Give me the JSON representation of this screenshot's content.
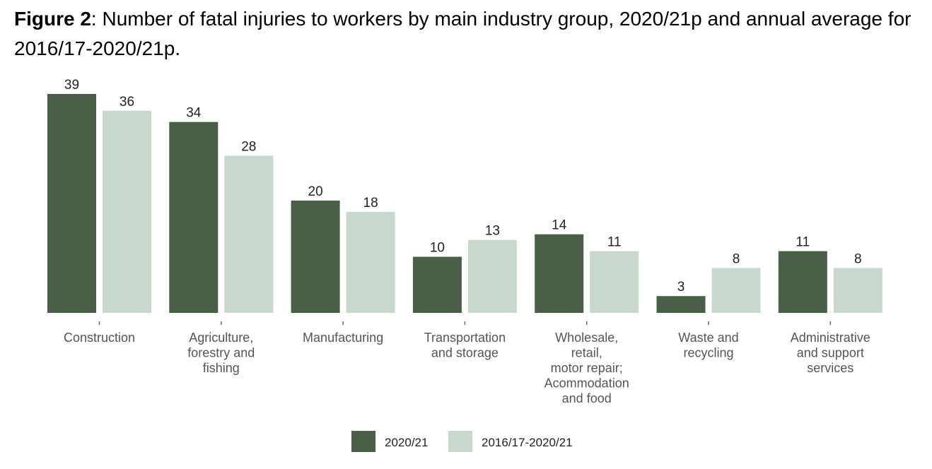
{
  "figure": {
    "label": "Figure 2",
    "caption": ": Number of fatal injuries to workers by main industry group, 2020/21p and annual average for 2016/17-2020/21p."
  },
  "colors": {
    "series1": "#4a5e48",
    "series2": "#c9d8cd",
    "tick": "#666666"
  },
  "chart_data": {
    "type": "bar",
    "categories": [
      [
        "Construction"
      ],
      [
        "Agriculture,",
        "forestry and",
        "fishing"
      ],
      [
        "Manufacturing"
      ],
      [
        "Transportation",
        "and storage"
      ],
      [
        "Wholesale,",
        "retail,",
        "motor repair;",
        "Acommodation",
        "and food"
      ],
      [
        "Waste and",
        "recycling"
      ],
      [
        "Administrative",
        "and support",
        "services"
      ]
    ],
    "series": [
      {
        "name": "2020/21",
        "values": [
          39,
          34,
          20,
          10,
          14,
          3,
          11
        ]
      },
      {
        "name": "2016/17-2020/21",
        "values": [
          36,
          28,
          18,
          13,
          11,
          8,
          8
        ]
      }
    ],
    "ylim": [
      0,
      39
    ],
    "grid": false,
    "legend": "bottom-center"
  }
}
